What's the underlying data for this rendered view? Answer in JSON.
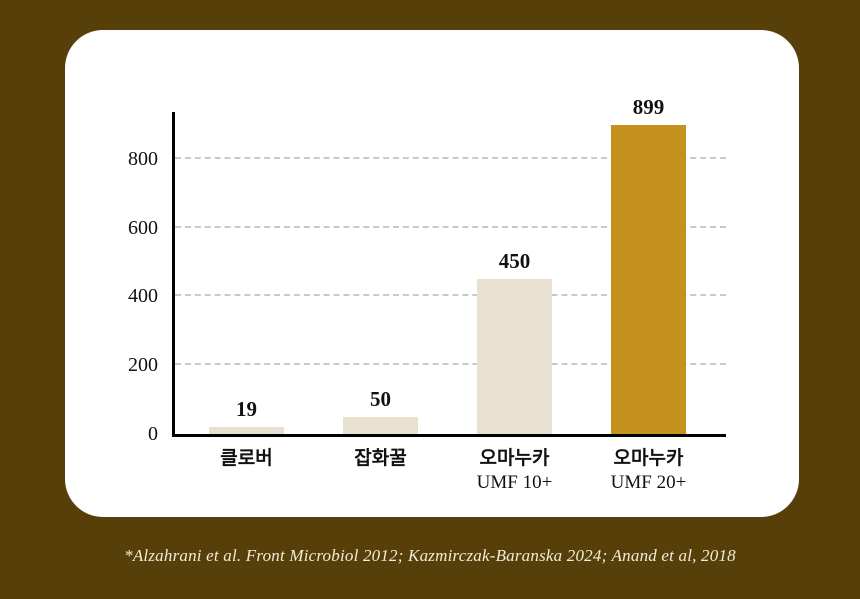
{
  "colors": {
    "background": "#573f0a",
    "card": "#ffffff",
    "axis": "#000000",
    "gridline": "#c9c9c9",
    "text": "#111111",
    "footer_text": "#f2ecd9",
    "bar_default": "#e8e1d2",
    "bar_highlight": "#c6921f"
  },
  "chart_data": {
    "type": "bar",
    "categories": [
      "클로버",
      "잡화꿀",
      "오마누카 UMF 10+",
      "오마누카 UMF 20+"
    ],
    "category_lines": [
      [
        "클로버"
      ],
      [
        "잡화꿀"
      ],
      [
        "오마누카",
        "UMF 10+"
      ],
      [
        "오마누카",
        "UMF 20+"
      ]
    ],
    "values": [
      19,
      50,
      450,
      899
    ],
    "value_labels": [
      "19",
      "50",
      "450",
      "899"
    ],
    "bar_colors": [
      "#e8e1d2",
      "#e8e1d2",
      "#e8e1d2",
      "#c6921f"
    ],
    "y_ticks": [
      0,
      200,
      400,
      600,
      800
    ],
    "ylim": [
      0,
      936
    ],
    "grid": "horizontal dashed",
    "legend": "none",
    "title": "",
    "xlabel": "",
    "ylabel": ""
  },
  "footer": {
    "citation": "*Alzahrani et al. Front Microbiol 2012; Kazmirczak-Baranska 2024; Anand et al, 2018"
  }
}
